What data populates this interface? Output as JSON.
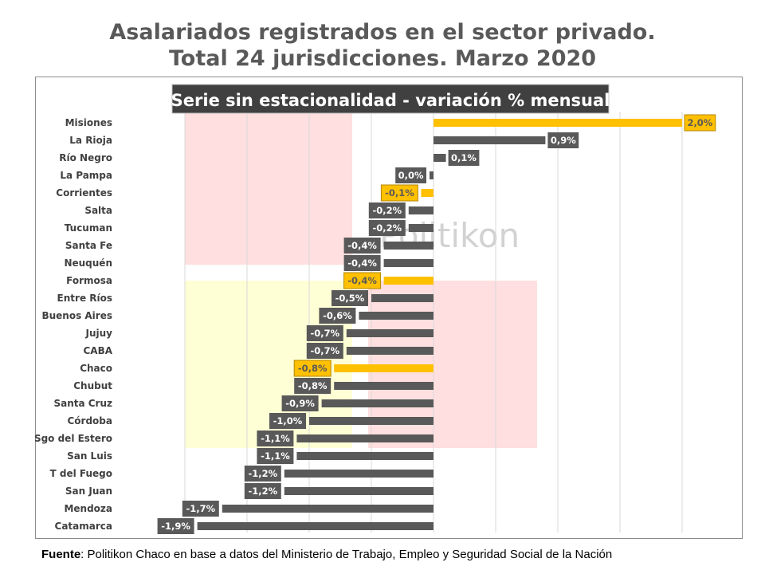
{
  "title": {
    "line1": "Asalariados registrados en el sector privado.",
    "line2": "Total 24 jurisdicciones. Marzo 2020"
  },
  "chart_data": {
    "type": "bar",
    "orientation": "horizontal",
    "subtitle": "Serie sin estacionalidad - variación % mensual",
    "categories": [
      "Misiones",
      "La Rioja",
      "Río Negro",
      "La Pampa",
      "Corrientes",
      "Salta",
      "Tucuman",
      "Santa Fe",
      "Neuquén",
      "Formosa",
      "Entre Ríos",
      "Buenos Aires",
      "Jujuy",
      "CABA",
      "Chaco",
      "Chubut",
      "Santa Cruz",
      "Córdoba",
      "Sgo del Estero",
      "San Luis",
      "T del Fuego",
      "San Juan",
      "Mendoza",
      "Catamarca"
    ],
    "values": [
      2.0,
      0.9,
      0.1,
      0.0,
      -0.1,
      -0.2,
      -0.2,
      -0.4,
      -0.4,
      -0.4,
      -0.5,
      -0.6,
      -0.7,
      -0.7,
      -0.8,
      -0.8,
      -0.9,
      -1.0,
      -1.1,
      -1.1,
      -1.2,
      -1.2,
      -1.7,
      -1.9
    ],
    "labels": [
      "2,0%",
      "0,9%",
      "0,1%",
      "0,0%",
      "-0,1%",
      "-0,2%",
      "-0,2%",
      "-0,4%",
      "-0,4%",
      "-0,4%",
      "-0,5%",
      "-0,6%",
      "-0,7%",
      "-0,7%",
      "-0,8%",
      "-0,8%",
      "-0,9%",
      "-1,0%",
      "-1,1%",
      "-1,1%",
      "-1,2%",
      "-1,2%",
      "-1,7%",
      "-1,9%"
    ],
    "highlighted": [
      "Misiones",
      "Corrientes",
      "Formosa",
      "Chaco"
    ],
    "xlim": [
      -2.0,
      2.0
    ],
    "grid": true,
    "colors": {
      "default": "#595959",
      "highlight": "#ffc000",
      "label_text_dark": "#ffffff",
      "label_text_highlight": "#595959"
    }
  },
  "watermark": "Politikon",
  "source": {
    "key": "Fuente",
    "text": ": Politikon Chaco en base a datos del Ministerio de Trabajo, Empleo y Seguridad Social de la Nación"
  }
}
